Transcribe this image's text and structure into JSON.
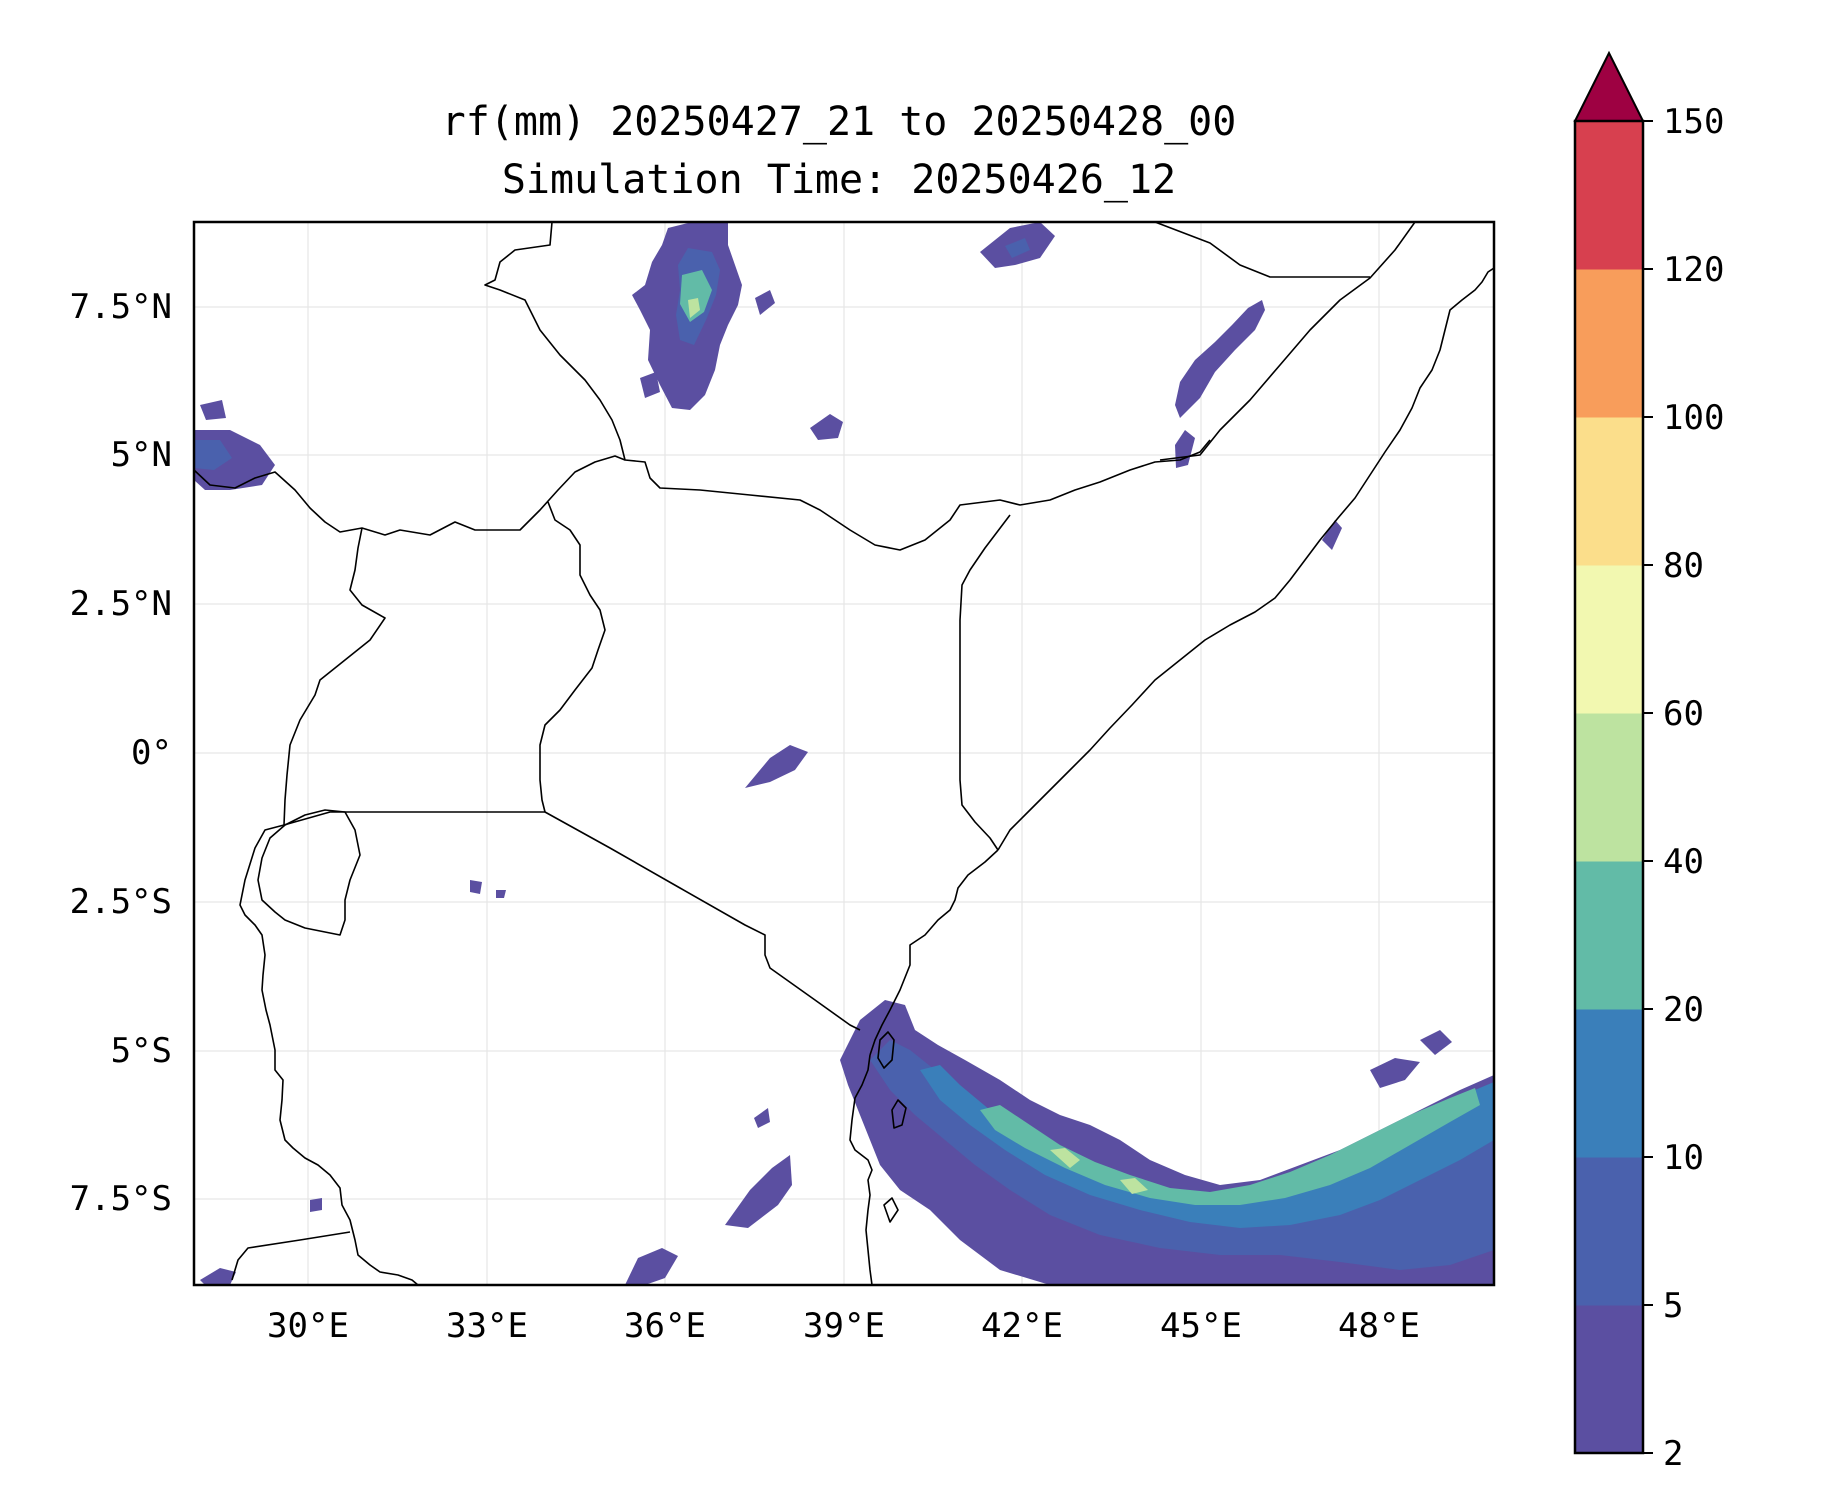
{
  "title": {
    "line1": "rf(mm) 20250427_21 to 20250428_00",
    "line2": "Simulation Time: 20250426_12"
  },
  "map": {
    "lon_ticks": [
      "30°E",
      "33°E",
      "36°E",
      "39°E",
      "42°E",
      "45°E",
      "48°E"
    ],
    "lat_ticks": [
      "7.5°N",
      "5°N",
      "2.5°N",
      "0°",
      "2.5°S",
      "5°S",
      "7.5°S"
    ]
  },
  "colorbar": {
    "levels": [
      "2",
      "5",
      "10",
      "20",
      "40",
      "60",
      "80",
      "100",
      "120",
      "150"
    ],
    "colors": [
      "#5b4fa1",
      "#4a61ad",
      "#3a7fba",
      "#62bba7",
      "#bde3a0",
      "#f2f8b0",
      "#fbde8b",
      "#f89d5b",
      "#d7404f"
    ],
    "extend_color": "#9e0142"
  },
  "chart_data": {
    "type": "heatmap",
    "title": "rf(mm) 20250427_21 to 20250428_00\nSimulation Time: 20250426_12",
    "x_ticks": [
      "30°E",
      "33°E",
      "36°E",
      "39°E",
      "42°E",
      "45°E",
      "48°E"
    ],
    "y_ticks": [
      "7.5°N",
      "5°N",
      "2.5°N",
      "0°",
      "2.5°S",
      "5°S",
      "7.5°S"
    ],
    "xlim": [
      28.1,
      49.9
    ],
    "ylim": [
      -8.9,
      8.9
    ],
    "grid": true,
    "colorbar_levels": [
      2,
      5,
      10,
      20,
      40,
      60,
      80,
      100,
      120,
      150
    ],
    "colorbar_extend": "max"
  }
}
